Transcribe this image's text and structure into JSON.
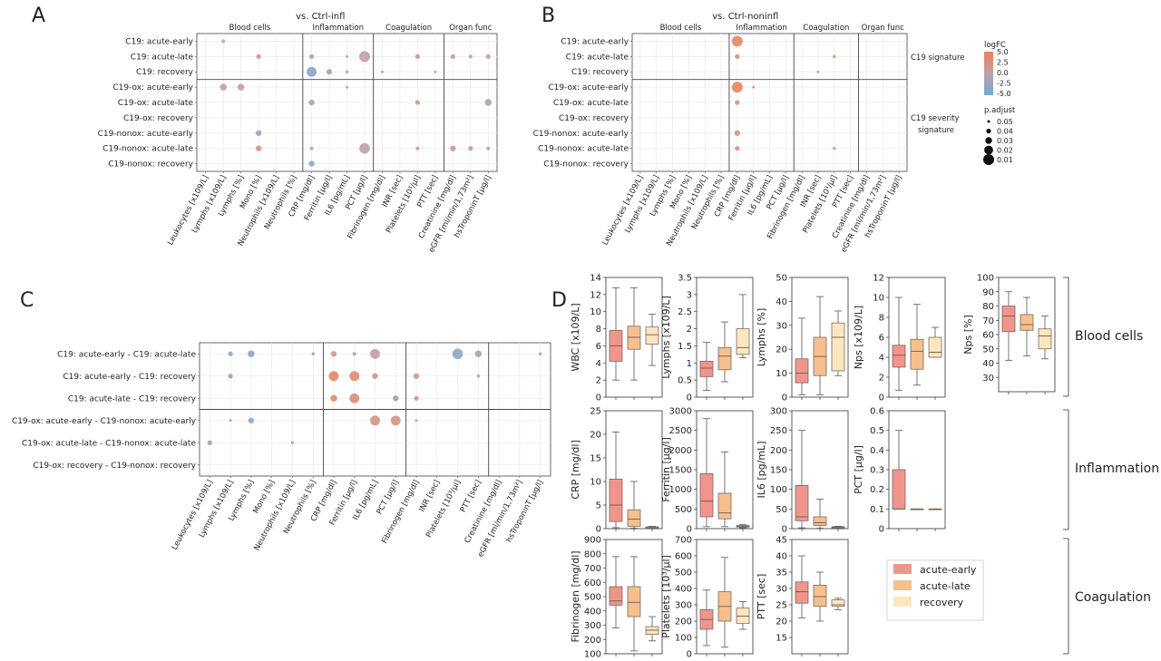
{
  "panels": {
    "A": "A",
    "B": "B",
    "C": "C",
    "D": "D"
  },
  "dot_rows_AB": [
    "C19: acute-early",
    "C19: acute-late",
    "C19: recovery",
    "C19-ox: acute-early",
    "C19-ox: acute-late",
    "C19-ox: recovery",
    "C19-nonox: acute-early",
    "C19-nonox: acute-late",
    "C19-nonox: recovery"
  ],
  "dot_rows_C": [
    "C19: acute-early - C19: acute-late",
    "C19: acute-early - C19: recovery",
    "C19: acute-late - C19: recovery",
    "C19-ox: acute-early - C19-nonox: acute-early",
    "C19-ox: acute-late - C19-nonox: acute-late",
    "C19-ox: recovery - C19-nonox: recovery"
  ],
  "dot_cols": [
    "Leukocytes [x109/L]",
    "Lymphs [x109/L]",
    "Lymphs [%]",
    "Mono [%]",
    "Neutrophils [x109/L]",
    "Neutrophils [%]",
    "CRP [mg/dl]",
    "Ferritin [µg/l]",
    "IL6 [pg/mL]",
    "PCT [µg/l]",
    "Fibrinogen [mg/dl]",
    "INR [sec]",
    "Platelets [10³/µl]",
    "PTT [sec]",
    "Creatinine [mg/dl]",
    "eGFR [ml/min/1,73m²]",
    "hsTroponinT [µg/l]"
  ],
  "groups": [
    "Blood cells",
    "Inflammation",
    "Coagulation",
    "Organ func"
  ],
  "titleA": "vs. Ctrl-infl",
  "titleB": "vs. Ctrl-noninfl",
  "sideB": [
    "C19 signature",
    "C19 severity",
    "signature"
  ],
  "legend": {
    "logfc_title": "logFC",
    "logfc_ticks": [
      "5.0",
      "2.5",
      "0.0",
      "-2.5",
      "-5.0"
    ],
    "padj_title": "p.adjust",
    "padj_ticks": [
      "0.05",
      "0.04",
      "0.03",
      "0.02",
      "0.01"
    ]
  },
  "colors": {
    "early": "#f0958b",
    "late": "#f5c08e",
    "recovery": "#fbe6bf",
    "pos": "#e8845e",
    "neg": "#6fa8d6",
    "mid": "#bfa1a8"
  },
  "chart_data": [
    {
      "type": "scatter",
      "panel": "A",
      "title": "vs. Ctrl-infl",
      "points": [
        {
          "r": 0,
          "c": 1,
          "fc": 0.6,
          "p": 0.045
        },
        {
          "r": 1,
          "c": 3,
          "fc": 2.5,
          "p": 0.04
        },
        {
          "r": 1,
          "c": 6,
          "fc": -0.5,
          "p": 0.04
        },
        {
          "r": 1,
          "c": 8,
          "fc": 1.5,
          "p": 0.05
        },
        {
          "r": 1,
          "c": 9,
          "fc": -0.3,
          "p": 0.01
        },
        {
          "r": 1,
          "c": 12,
          "fc": 1.3,
          "p": 0.04
        },
        {
          "r": 1,
          "c": 14,
          "fc": 1.3,
          "p": 0.04
        },
        {
          "r": 1,
          "c": 15,
          "fc": 1.8,
          "p": 0.045
        },
        {
          "r": 1,
          "c": 16,
          "fc": 1.2,
          "p": 0.04
        },
        {
          "r": 2,
          "c": 6,
          "fc": -3.5,
          "p": 0.015
        },
        {
          "r": 2,
          "c": 7,
          "fc": -0.6,
          "p": 0.035
        },
        {
          "r": 2,
          "c": 8,
          "fc": 0.5,
          "p": 0.048
        },
        {
          "r": 2,
          "c": 10,
          "fc": 1.0,
          "p": 0.05
        },
        {
          "r": 2,
          "c": 13,
          "fc": 0.5,
          "p": 0.05
        },
        {
          "r": 3,
          "c": 1,
          "fc": 0.8,
          "p": 0.03
        },
        {
          "r": 3,
          "c": 2,
          "fc": 0.8,
          "p": 0.03
        },
        {
          "r": 3,
          "c": 8,
          "fc": 2.5,
          "p": 0.05
        },
        {
          "r": 4,
          "c": 6,
          "fc": -2.5,
          "p": 0.035
        },
        {
          "r": 4,
          "c": 12,
          "fc": 1.4,
          "p": 0.04
        },
        {
          "r": 4,
          "c": 16,
          "fc": -1.0,
          "p": 0.03
        },
        {
          "r": 6,
          "c": 3,
          "fc": -2.5,
          "p": 0.035
        },
        {
          "r": 7,
          "c": 3,
          "fc": 2.0,
          "p": 0.035
        },
        {
          "r": 7,
          "c": 6,
          "fc": -0.3,
          "p": 0.045
        },
        {
          "r": 7,
          "c": 9,
          "fc": -0.3,
          "p": 0.012
        },
        {
          "r": 7,
          "c": 12,
          "fc": 1.3,
          "p": 0.045
        },
        {
          "r": 7,
          "c": 14,
          "fc": 1.0,
          "p": 0.035
        },
        {
          "r": 7,
          "c": 15,
          "fc": 1.6,
          "p": 0.04
        },
        {
          "r": 7,
          "c": 16,
          "fc": 1.0,
          "p": 0.045
        },
        {
          "r": 8,
          "c": 6,
          "fc": -3.5,
          "p": 0.035
        }
      ]
    },
    {
      "type": "scatter",
      "panel": "B",
      "title": "vs. Ctrl-noninfl",
      "points": [
        {
          "r": 0,
          "c": 6,
          "fc": 4.5,
          "p": 0.01
        },
        {
          "r": 1,
          "c": 6,
          "fc": 2.5,
          "p": 0.04
        },
        {
          "r": 1,
          "c": 12,
          "fc": 3.0,
          "p": 0.048
        },
        {
          "r": 2,
          "c": 11,
          "fc": 1.0,
          "p": 0.05
        },
        {
          "r": 3,
          "c": 6,
          "fc": 5.0,
          "p": 0.01
        },
        {
          "r": 3,
          "c": 7,
          "fc": 2.5,
          "p": 0.05
        },
        {
          "r": 4,
          "c": 6,
          "fc": 2.5,
          "p": 0.04
        },
        {
          "r": 6,
          "c": 6,
          "fc": 2.5,
          "p": 0.035
        },
        {
          "r": 7,
          "c": 6,
          "fc": 2.5,
          "p": 0.04
        },
        {
          "r": 7,
          "c": 12,
          "fc": 2.5,
          "p": 0.048
        }
      ]
    },
    {
      "type": "scatter",
      "panel": "C",
      "points": [
        {
          "r": 0,
          "c": 1,
          "fc": -3.0,
          "p": 0.04
        },
        {
          "r": 0,
          "c": 2,
          "fc": -3.0,
          "p": 0.03
        },
        {
          "r": 0,
          "c": 5,
          "fc": -2.5,
          "p": 0.048
        },
        {
          "r": 0,
          "c": 6,
          "fc": 1.5,
          "p": 0.035
        },
        {
          "r": 0,
          "c": 7,
          "fc": -0.5,
          "p": 0.045
        },
        {
          "r": 0,
          "c": 8,
          "fc": 0.8,
          "p": 0.015
        },
        {
          "r": 0,
          "c": 12,
          "fc": -3.0,
          "p": 0.012
        },
        {
          "r": 0,
          "c": 13,
          "fc": -1.5,
          "p": 0.03
        },
        {
          "r": 0,
          "c": 16,
          "fc": 0.3,
          "p": 0.048
        },
        {
          "r": 1,
          "c": 1,
          "fc": -3.0,
          "p": 0.04
        },
        {
          "r": 1,
          "c": 6,
          "fc": 4.5,
          "p": 0.015
        },
        {
          "r": 1,
          "c": 7,
          "fc": 3.5,
          "p": 0.015
        },
        {
          "r": 1,
          "c": 8,
          "fc": 2.5,
          "p": 0.035
        },
        {
          "r": 1,
          "c": 10,
          "fc": 1.5,
          "p": 0.035
        },
        {
          "r": 1,
          "c": 13,
          "fc": -1.5,
          "p": 0.048
        },
        {
          "r": 2,
          "c": 6,
          "fc": 3.5,
          "p": 0.03
        },
        {
          "r": 2,
          "c": 7,
          "fc": 3.5,
          "p": 0.015
        },
        {
          "r": 2,
          "c": 9,
          "fc": -3.0,
          "p": 0.035
        },
        {
          "r": 2,
          "c": 10,
          "fc": 1.5,
          "p": 0.04
        },
        {
          "r": 3,
          "c": 1,
          "fc": -1.0,
          "p": 0.05
        },
        {
          "r": 3,
          "c": 2,
          "fc": -3.0,
          "p": 0.035
        },
        {
          "r": 3,
          "c": 8,
          "fc": 2.5,
          "p": 0.015
        },
        {
          "r": 3,
          "c": 9,
          "fc": 2.5,
          "p": 0.015
        },
        {
          "r": 3,
          "c": 10,
          "fc": 1.0,
          "p": 0.05
        },
        {
          "r": 4,
          "c": 0,
          "fc": -2.0,
          "p": 0.04
        },
        {
          "r": 4,
          "c": 4,
          "fc": 0.5,
          "p": 0.048
        }
      ]
    },
    {
      "type": "box",
      "panel": "D",
      "group_labels": [
        "Blood cells",
        "Inflammation",
        "Coagulation"
      ],
      "legend": [
        "acute-early",
        "acute-late",
        "recovery"
      ],
      "plots": [
        {
          "ylabel": "WBC [x109/L]",
          "ylim": [
            0,
            14
          ],
          "ticks": [
            0,
            2,
            4,
            6,
            8,
            10,
            12,
            14
          ],
          "boxes": [
            [
              2,
              4.2,
              6,
              7.8,
              12.8
            ],
            [
              2,
              5.6,
              7,
              8.3,
              12.8
            ],
            [
              3.7,
              6.2,
              7.3,
              8.2,
              9.7
            ]
          ]
        },
        {
          "ylabel": "Lymphs [x109/L]",
          "ylim": [
            0,
            3.5
          ],
          "ticks": [
            0,
            0.5,
            1.0,
            1.5,
            2.0,
            2.5,
            3.0,
            3.5
          ],
          "boxes": [
            [
              0.2,
              0.6,
              0.85,
              1.05,
              1.6
            ],
            [
              0.45,
              0.8,
              1.2,
              1.45,
              2.2
            ],
            [
              1.15,
              1.25,
              1.45,
              2.0,
              3.0
            ]
          ]
        },
        {
          "ylabel": "Lymphs [%]",
          "ylim": [
            0,
            50
          ],
          "ticks": [
            0,
            10,
            20,
            30,
            40,
            50
          ],
          "boxes": [
            [
              1,
              6,
              10,
              16,
              33
            ],
            [
              1,
              9,
              17,
              25,
              42
            ],
            [
              9,
              11,
              25,
              31,
              36
            ]
          ]
        },
        {
          "ylabel": "Nps [x109/L]",
          "ylim": [
            0,
            12
          ],
          "ticks": [
            0,
            2,
            4,
            6,
            8,
            10,
            12
          ],
          "boxes": [
            [
              0.7,
              3,
              4.2,
              5.2,
              10
            ],
            [
              1.2,
              2.8,
              4.6,
              5.8,
              9.3
            ],
            [
              4,
              4,
              4.5,
              6,
              7
            ]
          ]
        },
        {
          "ylabel": "Nps [%]",
          "ylim": [
            20,
            100
          ],
          "ticks": [
            30,
            40,
            50,
            60,
            70,
            80,
            90,
            100
          ],
          "boxes": [
            [
              42,
              62,
              73,
              80,
              90
            ],
            [
              45,
              63,
              67,
              74,
              86
            ],
            [
              43,
              50,
              59,
              64,
              73
            ]
          ]
        },
        {
          "ylabel": "CRP [mg/dl]",
          "ylim": [
            0,
            25
          ],
          "ticks": [
            0,
            5,
            10,
            15,
            20,
            25
          ],
          "boxes": [
            [
              0.2,
              1.5,
              5,
              10.5,
              20.5
            ],
            [
              0.1,
              0.5,
              2,
              4,
              10
            ],
            [
              0,
              0.1,
              0.2,
              0.4,
              0.5
            ]
          ]
        },
        {
          "ylabel": "Ferritin [µg/l]",
          "ylim": [
            0,
            3000
          ],
          "ticks": [
            0,
            500,
            1000,
            1500,
            2000,
            2500,
            3000
          ],
          "boxes": [
            [
              50,
              300,
              700,
              1400,
              2800
            ],
            [
              50,
              250,
              400,
              900,
              1950
            ],
            [
              20,
              40,
              60,
              80,
              100
            ]
          ]
        },
        {
          "ylabel": "IL6 [pg/mL]",
          "ylim": [
            0,
            300
          ],
          "ticks": [
            0,
            50,
            100,
            150,
            200,
            250,
            300
          ],
          "boxes": [
            [
              2,
              20,
              30,
              110,
              250
            ],
            [
              1,
              8,
              15,
              30,
              75
            ],
            [
              0,
              2,
              3,
              5,
              6
            ]
          ]
        },
        {
          "ylabel": "PCT [µg/l]",
          "ylim": [
            0,
            0.6
          ],
          "ticks": [
            0,
            0.1,
            0.2,
            0.3,
            0.4,
            0.5,
            0.6
          ],
          "boxes": [
            [
              0.1,
              0.1,
              0.1,
              0.3,
              0.5
            ],
            [
              0.1,
              0.1,
              0.1,
              0.1,
              0.1
            ],
            [
              0.1,
              0.1,
              0.1,
              0.1,
              0.1
            ]
          ]
        },
        {
          "ylabel": "Fibrinogen [mg/dl]",
          "ylim": [
            100,
            900
          ],
          "ticks": [
            100,
            200,
            300,
            400,
            500,
            600,
            700,
            800,
            900
          ],
          "boxes": [
            [
              280,
              440,
              470,
              570,
              780
            ],
            [
              120,
              360,
              460,
              570,
              780
            ],
            [
              190,
              235,
              265,
              290,
              360
            ]
          ]
        },
        {
          "ylabel": "Platelets [10³/µl]",
          "ylim": [
            0,
            700
          ],
          "ticks": [
            0,
            100,
            200,
            300,
            400,
            500,
            600,
            700
          ],
          "boxes": [
            [
              50,
              150,
              210,
              270,
              390
            ],
            [
              40,
              200,
              290,
              380,
              590
            ],
            [
              150,
              185,
              230,
              280,
              320
            ]
          ]
        },
        {
          "ylabel": "PTT [sec]",
          "ylim": [
            10,
            45
          ],
          "ticks": [
            15,
            20,
            25,
            30,
            35,
            40,
            45
          ],
          "boxes": [
            [
              21,
              25.5,
              29,
              32,
              40
            ],
            [
              20,
              24.5,
              27.5,
              31,
              35
            ],
            [
              23.5,
              24.5,
              25,
              26.5,
              27
            ]
          ]
        }
      ]
    }
  ]
}
